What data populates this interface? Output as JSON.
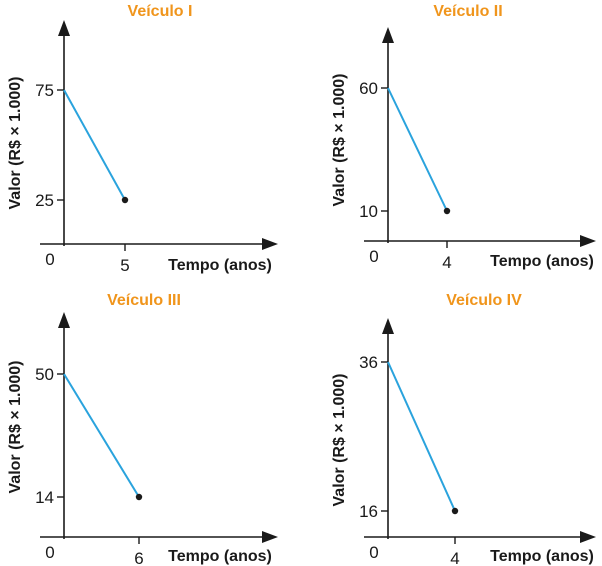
{
  "chart_data": [
    {
      "type": "line",
      "title": "Veículo I",
      "xlabel": "Tempo (anos)",
      "ylabel": "Valor (R$ × 1.000)",
      "origin_label": "0",
      "x": [
        0,
        5
      ],
      "y": [
        75,
        25
      ],
      "x_ticks": [
        5
      ],
      "y_ticks": [
        75,
        25
      ],
      "colors": {
        "line": "#2aa3dd",
        "title": "#f0951c"
      }
    },
    {
      "type": "line",
      "title": "Veículo II",
      "xlabel": "Tempo (anos)",
      "ylabel": "Valor (R$ × 1.000)",
      "origin_label": "0",
      "x": [
        0,
        4
      ],
      "y": [
        60,
        10
      ],
      "x_ticks": [
        4
      ],
      "y_ticks": [
        60,
        10
      ],
      "colors": {
        "line": "#2aa3dd",
        "title": "#f0951c"
      }
    },
    {
      "type": "line",
      "title": "Veículo III",
      "xlabel": "Tempo (anos)",
      "ylabel": "Valor (R$ × 1.000)",
      "origin_label": "0",
      "x": [
        0,
        6
      ],
      "y": [
        50,
        14
      ],
      "x_ticks": [
        6
      ],
      "y_ticks": [
        50,
        14
      ],
      "colors": {
        "line": "#2aa3dd",
        "title": "#f0951c"
      }
    },
    {
      "type": "line",
      "title": "Veículo IV",
      "xlabel": "Tempo (anos)",
      "ylabel": "Valor (R$ × 1.000)",
      "origin_label": "0",
      "x": [
        0,
        4
      ],
      "y": [
        36,
        16
      ],
      "x_ticks": [
        4
      ],
      "y_ticks": [
        36,
        16
      ],
      "colors": {
        "line": "#2aa3dd",
        "title": "#f0951c"
      }
    }
  ]
}
